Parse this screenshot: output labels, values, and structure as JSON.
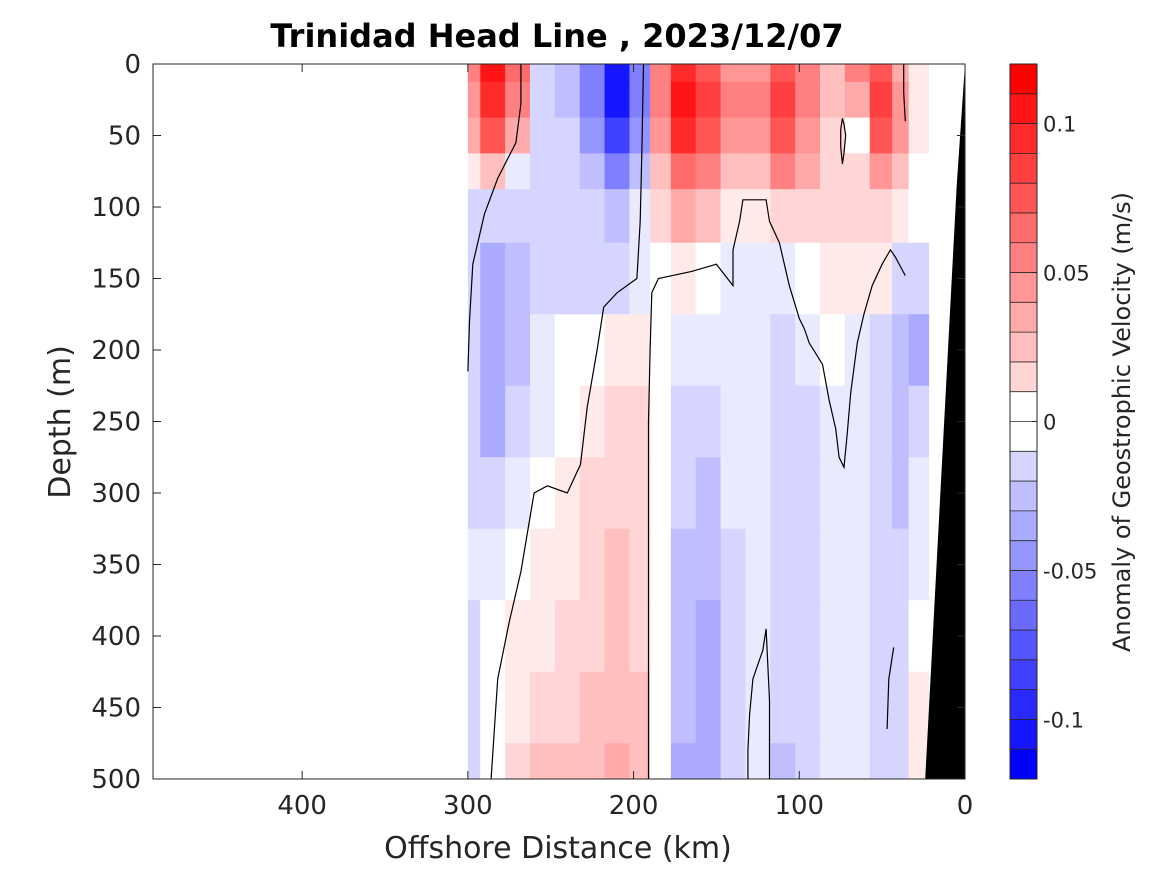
{
  "chart_data": {
    "type": "heatmap",
    "title": "Trinidad Head Line , 2023/12/07",
    "xlabel": "Offshore Distance (km)",
    "ylabel": "Depth (m)",
    "x_axis": {
      "range": [
        490,
        0
      ],
      "reversed": true,
      "ticks": [
        400,
        300,
        200,
        100,
        0
      ],
      "tick_labels": [
        "400",
        "300",
        "200",
        "100",
        "0"
      ]
    },
    "y_axis": {
      "range": [
        0,
        500
      ],
      "reversed": true,
      "ticks": [
        0,
        50,
        100,
        150,
        200,
        250,
        300,
        350,
        400,
        450,
        500
      ],
      "tick_labels": [
        "0",
        "50",
        "100",
        "150",
        "200",
        "250",
        "300",
        "350",
        "400",
        "450",
        "500"
      ]
    },
    "colorbar": {
      "label": "Anomaly of Geostrophic Velocity (m/s)",
      "range": [
        -0.12,
        0.12
      ],
      "step": 0.01,
      "ticks": [
        0.1,
        0.05,
        0,
        -0.05,
        -0.1
      ],
      "tick_labels": [
        "0.1",
        "0.05",
        "0",
        "-0.05",
        "-0.1"
      ],
      "neutral_band": [
        -0.01,
        0.01
      ]
    },
    "x": [
      300,
      285,
      270,
      255,
      240,
      225,
      210,
      195,
      185,
      170,
      155,
      140,
      125,
      110,
      95,
      80,
      65,
      50,
      38,
      30
    ],
    "y": [
      0,
      25,
      50,
      75,
      100,
      150,
      200,
      250,
      300,
      350,
      400,
      450,
      500
    ],
    "values": [
      [
        0.06,
        0.11,
        0.07,
        -0.02,
        -0.03,
        -0.06,
        -0.11,
        -0.06,
        0.06,
        0.1,
        0.08,
        0.05,
        0.05,
        0.08,
        0.06,
        0.03,
        0.06,
        0.08,
        0.04,
        0.01
      ],
      [
        0.05,
        0.1,
        0.06,
        -0.02,
        -0.03,
        -0.06,
        -0.11,
        -0.06,
        0.06,
        0.11,
        0.09,
        0.06,
        0.06,
        0.09,
        0.06,
        0.03,
        0.04,
        0.09,
        0.05,
        0.01
      ],
      [
        0.04,
        0.08,
        0.04,
        -0.02,
        -0.02,
        -0.05,
        -0.09,
        -0.05,
        0.05,
        0.1,
        0.08,
        0.05,
        0.05,
        0.08,
        0.05,
        0.02,
        0.0,
        0.08,
        0.05,
        0.01
      ],
      [
        0.01,
        0.03,
        -0.01,
        -0.02,
        -0.02,
        -0.03,
        -0.06,
        -0.03,
        0.03,
        0.07,
        0.06,
        0.03,
        0.03,
        0.06,
        0.04,
        0.02,
        0.02,
        0.05,
        0.03,
        0.0
      ],
      [
        -0.02,
        -0.02,
        -0.02,
        -0.02,
        -0.02,
        -0.02,
        -0.03,
        -0.01,
        0.02,
        0.04,
        0.03,
        0.01,
        0.01,
        0.02,
        0.02,
        0.02,
        0.02,
        0.02,
        0.01,
        0.0
      ],
      [
        -0.02,
        -0.04,
        -0.03,
        -0.02,
        -0.02,
        -0.02,
        -0.02,
        -0.01,
        0.0,
        0.01,
        0.0,
        -0.01,
        -0.01,
        -0.01,
        0.0,
        0.01,
        0.01,
        0.01,
        -0.02,
        -0.02
      ],
      [
        -0.02,
        -0.04,
        -0.03,
        -0.01,
        0.0,
        0.0,
        0.01,
        0.01,
        0.0,
        -0.01,
        -0.01,
        -0.01,
        -0.01,
        -0.02,
        -0.01,
        0.0,
        -0.01,
        -0.02,
        -0.03,
        -0.04
      ],
      [
        -0.02,
        -0.04,
        -0.02,
        -0.01,
        0.0,
        0.01,
        0.02,
        0.02,
        0.0,
        -0.02,
        -0.02,
        -0.01,
        -0.01,
        -0.02,
        -0.02,
        -0.01,
        -0.01,
        -0.02,
        -0.03,
        -0.02
      ],
      [
        -0.02,
        -0.02,
        -0.01,
        0.0,
        0.01,
        0.02,
        0.02,
        0.02,
        0.0,
        -0.02,
        -0.03,
        -0.01,
        -0.01,
        -0.02,
        -0.02,
        -0.01,
        -0.01,
        -0.02,
        -0.03,
        -0.01
      ],
      [
        -0.01,
        -0.01,
        0.0,
        0.01,
        0.01,
        0.02,
        0.03,
        0.02,
        0.0,
        -0.03,
        -0.03,
        -0.02,
        -0.01,
        -0.02,
        -0.02,
        -0.01,
        -0.01,
        -0.02,
        -0.02,
        -0.01
      ],
      [
        -0.02,
        0.0,
        0.01,
        0.01,
        0.02,
        0.02,
        0.03,
        0.02,
        0.0,
        -0.03,
        -0.04,
        -0.02,
        -0.01,
        -0.02,
        -0.02,
        -0.01,
        -0.01,
        -0.02,
        -0.02,
        0.0
      ],
      [
        -0.02,
        0.0,
        0.01,
        0.02,
        0.02,
        0.03,
        0.03,
        0.03,
        0.0,
        -0.03,
        -0.04,
        -0.02,
        -0.01,
        -0.02,
        -0.02,
        -0.01,
        -0.01,
        -0.02,
        -0.02,
        0.01
      ],
      [
        -0.02,
        0.0,
        0.02,
        0.03,
        0.03,
        0.03,
        0.04,
        0.03,
        0.0,
        -0.04,
        -0.04,
        -0.02,
        -0.01,
        -0.03,
        -0.02,
        -0.01,
        -0.01,
        -0.02,
        -0.02,
        0.01
      ]
    ],
    "bathymetry": {
      "color": "#000000",
      "points": [
        [
          0,
          0
        ],
        [
          5,
          85
        ],
        [
          24,
          500
        ],
        [
          0,
          500
        ]
      ]
    },
    "zero_contours": [
      [
        [
          300,
          215
        ],
        [
          299,
          180
        ],
        [
          297,
          140
        ],
        [
          290,
          105
        ],
        [
          282,
          80
        ],
        [
          271,
          55
        ],
        [
          268,
          28
        ],
        [
          268,
          0
        ]
      ],
      [
        [
          286,
          500
        ],
        [
          282,
          430
        ],
        [
          275,
          390
        ],
        [
          268,
          355
        ],
        [
          260,
          300
        ],
        [
          252,
          295
        ],
        [
          240,
          300
        ],
        [
          232,
          280
        ],
        [
          228,
          240
        ],
        [
          222,
          200
        ],
        [
          218,
          170
        ],
        [
          210,
          160
        ],
        [
          198,
          150
        ],
        [
          196,
          110
        ],
        [
          195,
          60
        ],
        [
          194,
          0
        ]
      ],
      [
        [
          191,
          500
        ],
        [
          191,
          400
        ],
        [
          191,
          300
        ],
        [
          191,
          250
        ],
        [
          190,
          200
        ],
        [
          189,
          160
        ],
        [
          185,
          150
        ],
        [
          165,
          145
        ],
        [
          150,
          140
        ],
        [
          140,
          155
        ],
        [
          140,
          130
        ],
        [
          136,
          110
        ],
        [
          134,
          95
        ],
        [
          120,
          95
        ],
        [
          118,
          110
        ],
        [
          112,
          125
        ],
        [
          106,
          155
        ],
        [
          100,
          178
        ],
        [
          97,
          185
        ],
        [
          94,
          195
        ],
        [
          86,
          210
        ],
        [
          82,
          235
        ],
        [
          78,
          255
        ],
        [
          76,
          275
        ],
        [
          73,
          282
        ],
        [
          71,
          258
        ],
        [
          69,
          230
        ],
        [
          65,
          195
        ],
        [
          61,
          175
        ],
        [
          56,
          155
        ],
        [
          50,
          140
        ],
        [
          45,
          130
        ],
        [
          42,
          135
        ],
        [
          36,
          148
        ]
      ],
      [
        [
          74,
          70
        ],
        [
          73,
          62
        ],
        [
          72,
          50
        ],
        [
          73,
          42
        ],
        [
          74,
          38
        ],
        [
          75,
          46
        ],
        [
          75,
          58
        ],
        [
          74,
          70
        ]
      ],
      [
        [
          131,
          500
        ],
        [
          131,
          480
        ],
        [
          130,
          455
        ],
        [
          128,
          430
        ],
        [
          122,
          410
        ],
        [
          120,
          395
        ],
        [
          118,
          445
        ],
        [
          118,
          500
        ]
      ],
      [
        [
          47,
          465
        ],
        [
          46,
          430
        ],
        [
          43,
          408
        ]
      ],
      [
        [
          37,
          0
        ],
        [
          37,
          20
        ],
        [
          36,
          40
        ]
      ]
    ]
  }
}
